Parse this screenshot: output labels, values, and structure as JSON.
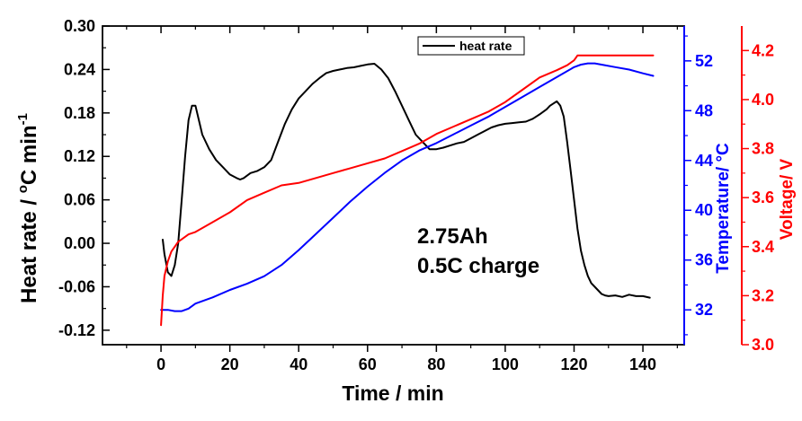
{
  "chart_data": {
    "type": "line",
    "title": "",
    "xlabel": "Time / min",
    "xlim": [
      -17,
      152
    ],
    "xticks": [
      0,
      20,
      40,
      60,
      80,
      100,
      120,
      140
    ],
    "axes": {
      "left": {
        "label_main": "Heat rate / ",
        "label_deg": "o",
        "label_unit": "C min",
        "label_sup": "-1",
        "ylim": [
          -0.14,
          0.3
        ],
        "ticks": [
          -0.12,
          -0.06,
          0.0,
          0.06,
          0.12,
          0.18,
          0.24,
          0.3
        ],
        "tick_labels": [
          "-0.12",
          "-0.06",
          "0.00",
          "0.06",
          "0.12",
          "0.18",
          "0.24",
          "0.30"
        ],
        "color": "#000000"
      },
      "right1": {
        "label": "Temperature/ °C",
        "ylim": [
          29.2,
          54.8
        ],
        "ticks": [
          32,
          36,
          40,
          44,
          48,
          52
        ],
        "tick_labels": [
          "32",
          "36",
          "40",
          "44",
          "48",
          "52"
        ],
        "color": "#0000ff"
      },
      "right2": {
        "label": "Voltage/ V",
        "ylim": [
          3.0,
          4.3
        ],
        "ticks": [
          3.0,
          3.2,
          3.4,
          3.6,
          3.8,
          4.0,
          4.2
        ],
        "tick_labels": [
          "3.0",
          "3.2",
          "3.4",
          "3.6",
          "3.8",
          "4.0",
          "4.2"
        ],
        "color": "#ff0000"
      }
    },
    "legend": {
      "label": "heat rate",
      "position": "top-center"
    },
    "annotations": [
      "2.75Ah",
      "0.5C charge"
    ],
    "series": [
      {
        "name": "heat rate",
        "axis": "left",
        "color": "#000000",
        "x": [
          0.5,
          1,
          2,
          3,
          4,
          5,
          6,
          7,
          8,
          9,
          10,
          11,
          12,
          14,
          16,
          18,
          20,
          22,
          23,
          24,
          26,
          28,
          30,
          32,
          34,
          36,
          38,
          40,
          42,
          44,
          46,
          48,
          50,
          52,
          54,
          56,
          58,
          60,
          62,
          64,
          66,
          68,
          70,
          72,
          74,
          76,
          78,
          80,
          82,
          84,
          86,
          88,
          90,
          92,
          94,
          96,
          98,
          100,
          102,
          104,
          106,
          108,
          110,
          112,
          113,
          114,
          115,
          116,
          117,
          118,
          119,
          120,
          121,
          122,
          123,
          124,
          125,
          126,
          127,
          128,
          129,
          130,
          132,
          134,
          136,
          138,
          140,
          142
        ],
        "values": [
          0.005,
          -0.015,
          -0.04,
          -0.045,
          -0.03,
          0.0,
          0.06,
          0.12,
          0.17,
          0.19,
          0.19,
          0.17,
          0.15,
          0.13,
          0.115,
          0.105,
          0.095,
          0.09,
          0.088,
          0.09,
          0.097,
          0.1,
          0.105,
          0.115,
          0.14,
          0.165,
          0.185,
          0.2,
          0.21,
          0.22,
          0.228,
          0.235,
          0.238,
          0.24,
          0.242,
          0.243,
          0.245,
          0.247,
          0.248,
          0.24,
          0.228,
          0.21,
          0.19,
          0.17,
          0.15,
          0.14,
          0.13,
          0.13,
          0.132,
          0.135,
          0.138,
          0.14,
          0.145,
          0.15,
          0.155,
          0.16,
          0.163,
          0.165,
          0.166,
          0.167,
          0.168,
          0.172,
          0.178,
          0.185,
          0.19,
          0.193,
          0.196,
          0.19,
          0.175,
          0.14,
          0.1,
          0.06,
          0.02,
          -0.01,
          -0.03,
          -0.045,
          -0.055,
          -0.06,
          -0.065,
          -0.07,
          -0.072,
          -0.073,
          -0.072,
          -0.074,
          -0.071,
          -0.073,
          -0.073,
          -0.075
        ]
      },
      {
        "name": "Temperature",
        "axis": "right1",
        "color": "#0000ff",
        "x": [
          0,
          2,
          4,
          6,
          8,
          10,
          15,
          20,
          25,
          30,
          35,
          40,
          45,
          50,
          55,
          60,
          65,
          70,
          75,
          80,
          85,
          90,
          95,
          100,
          105,
          110,
          115,
          120,
          122,
          124,
          126,
          128,
          132,
          136,
          140,
          143
        ],
        "values": [
          32.0,
          32.0,
          31.9,
          31.9,
          32.1,
          32.5,
          33.0,
          33.6,
          34.1,
          34.7,
          35.6,
          36.8,
          38.1,
          39.4,
          40.7,
          41.9,
          43.0,
          44.0,
          44.8,
          45.4,
          46.1,
          46.8,
          47.5,
          48.3,
          49.1,
          49.9,
          50.7,
          51.5,
          51.7,
          51.8,
          51.8,
          51.7,
          51.5,
          51.3,
          51.0,
          50.8
        ]
      },
      {
        "name": "Voltage",
        "axis": "right2",
        "color": "#ff0000",
        "x": [
          0,
          0.5,
          1,
          2,
          3,
          4,
          5,
          6,
          8,
          10,
          15,
          20,
          25,
          30,
          35,
          40,
          45,
          50,
          55,
          60,
          65,
          70,
          75,
          80,
          85,
          90,
          95,
          100,
          105,
          110,
          115,
          118,
          120,
          121,
          125,
          130,
          135,
          140,
          143
        ],
        "values": [
          3.08,
          3.2,
          3.28,
          3.34,
          3.38,
          3.4,
          3.42,
          3.43,
          3.45,
          3.46,
          3.5,
          3.54,
          3.59,
          3.62,
          3.65,
          3.66,
          3.68,
          3.7,
          3.72,
          3.74,
          3.76,
          3.79,
          3.82,
          3.86,
          3.89,
          3.92,
          3.95,
          3.99,
          4.04,
          4.09,
          4.12,
          4.14,
          4.16,
          4.18,
          4.18,
          4.18,
          4.18,
          4.18,
          4.18
        ]
      }
    ]
  }
}
